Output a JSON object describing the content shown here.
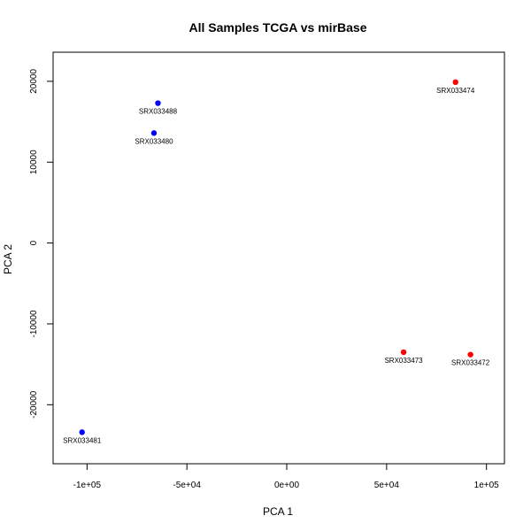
{
  "chart_data": {
    "type": "scatter",
    "title": "All Samples TCGA vs mirBase",
    "xlabel": "PCA 1",
    "ylabel": "PCA 2",
    "xlim": [
      -117000,
      109000
    ],
    "ylim": [
      -27300,
      23600
    ],
    "grid": false,
    "x_ticks": [
      {
        "value": -100000,
        "label": "-1e+05"
      },
      {
        "value": -50000,
        "label": "-5e+04"
      },
      {
        "value": 0,
        "label": "0e+00"
      },
      {
        "value": 50000,
        "label": "5e+04"
      },
      {
        "value": 100000,
        "label": "1e+05"
      }
    ],
    "y_ticks": [
      {
        "value": -20000,
        "label": "-20000"
      },
      {
        "value": -10000,
        "label": "-10000"
      },
      {
        "value": 0,
        "label": "0"
      },
      {
        "value": 10000,
        "label": "10000"
      },
      {
        "value": 20000,
        "label": "20000"
      }
    ],
    "points": [
      {
        "label": "SRX033488",
        "x": -64500,
        "y": 17300,
        "color": "#0000ff"
      },
      {
        "label": "SRX033480",
        "x": -66500,
        "y": 13600,
        "color": "#0000ff"
      },
      {
        "label": "SRX033481",
        "x": -102500,
        "y": -23400,
        "color": "#0000ff"
      },
      {
        "label": "SRX033474",
        "x": 84500,
        "y": 19900,
        "color": "#ff0000"
      },
      {
        "label": "SRX033473",
        "x": 58500,
        "y": -13500,
        "color": "#ff0000"
      },
      {
        "label": "SRX033472",
        "x": 92000,
        "y": -13800,
        "color": "#ff0000"
      }
    ]
  }
}
